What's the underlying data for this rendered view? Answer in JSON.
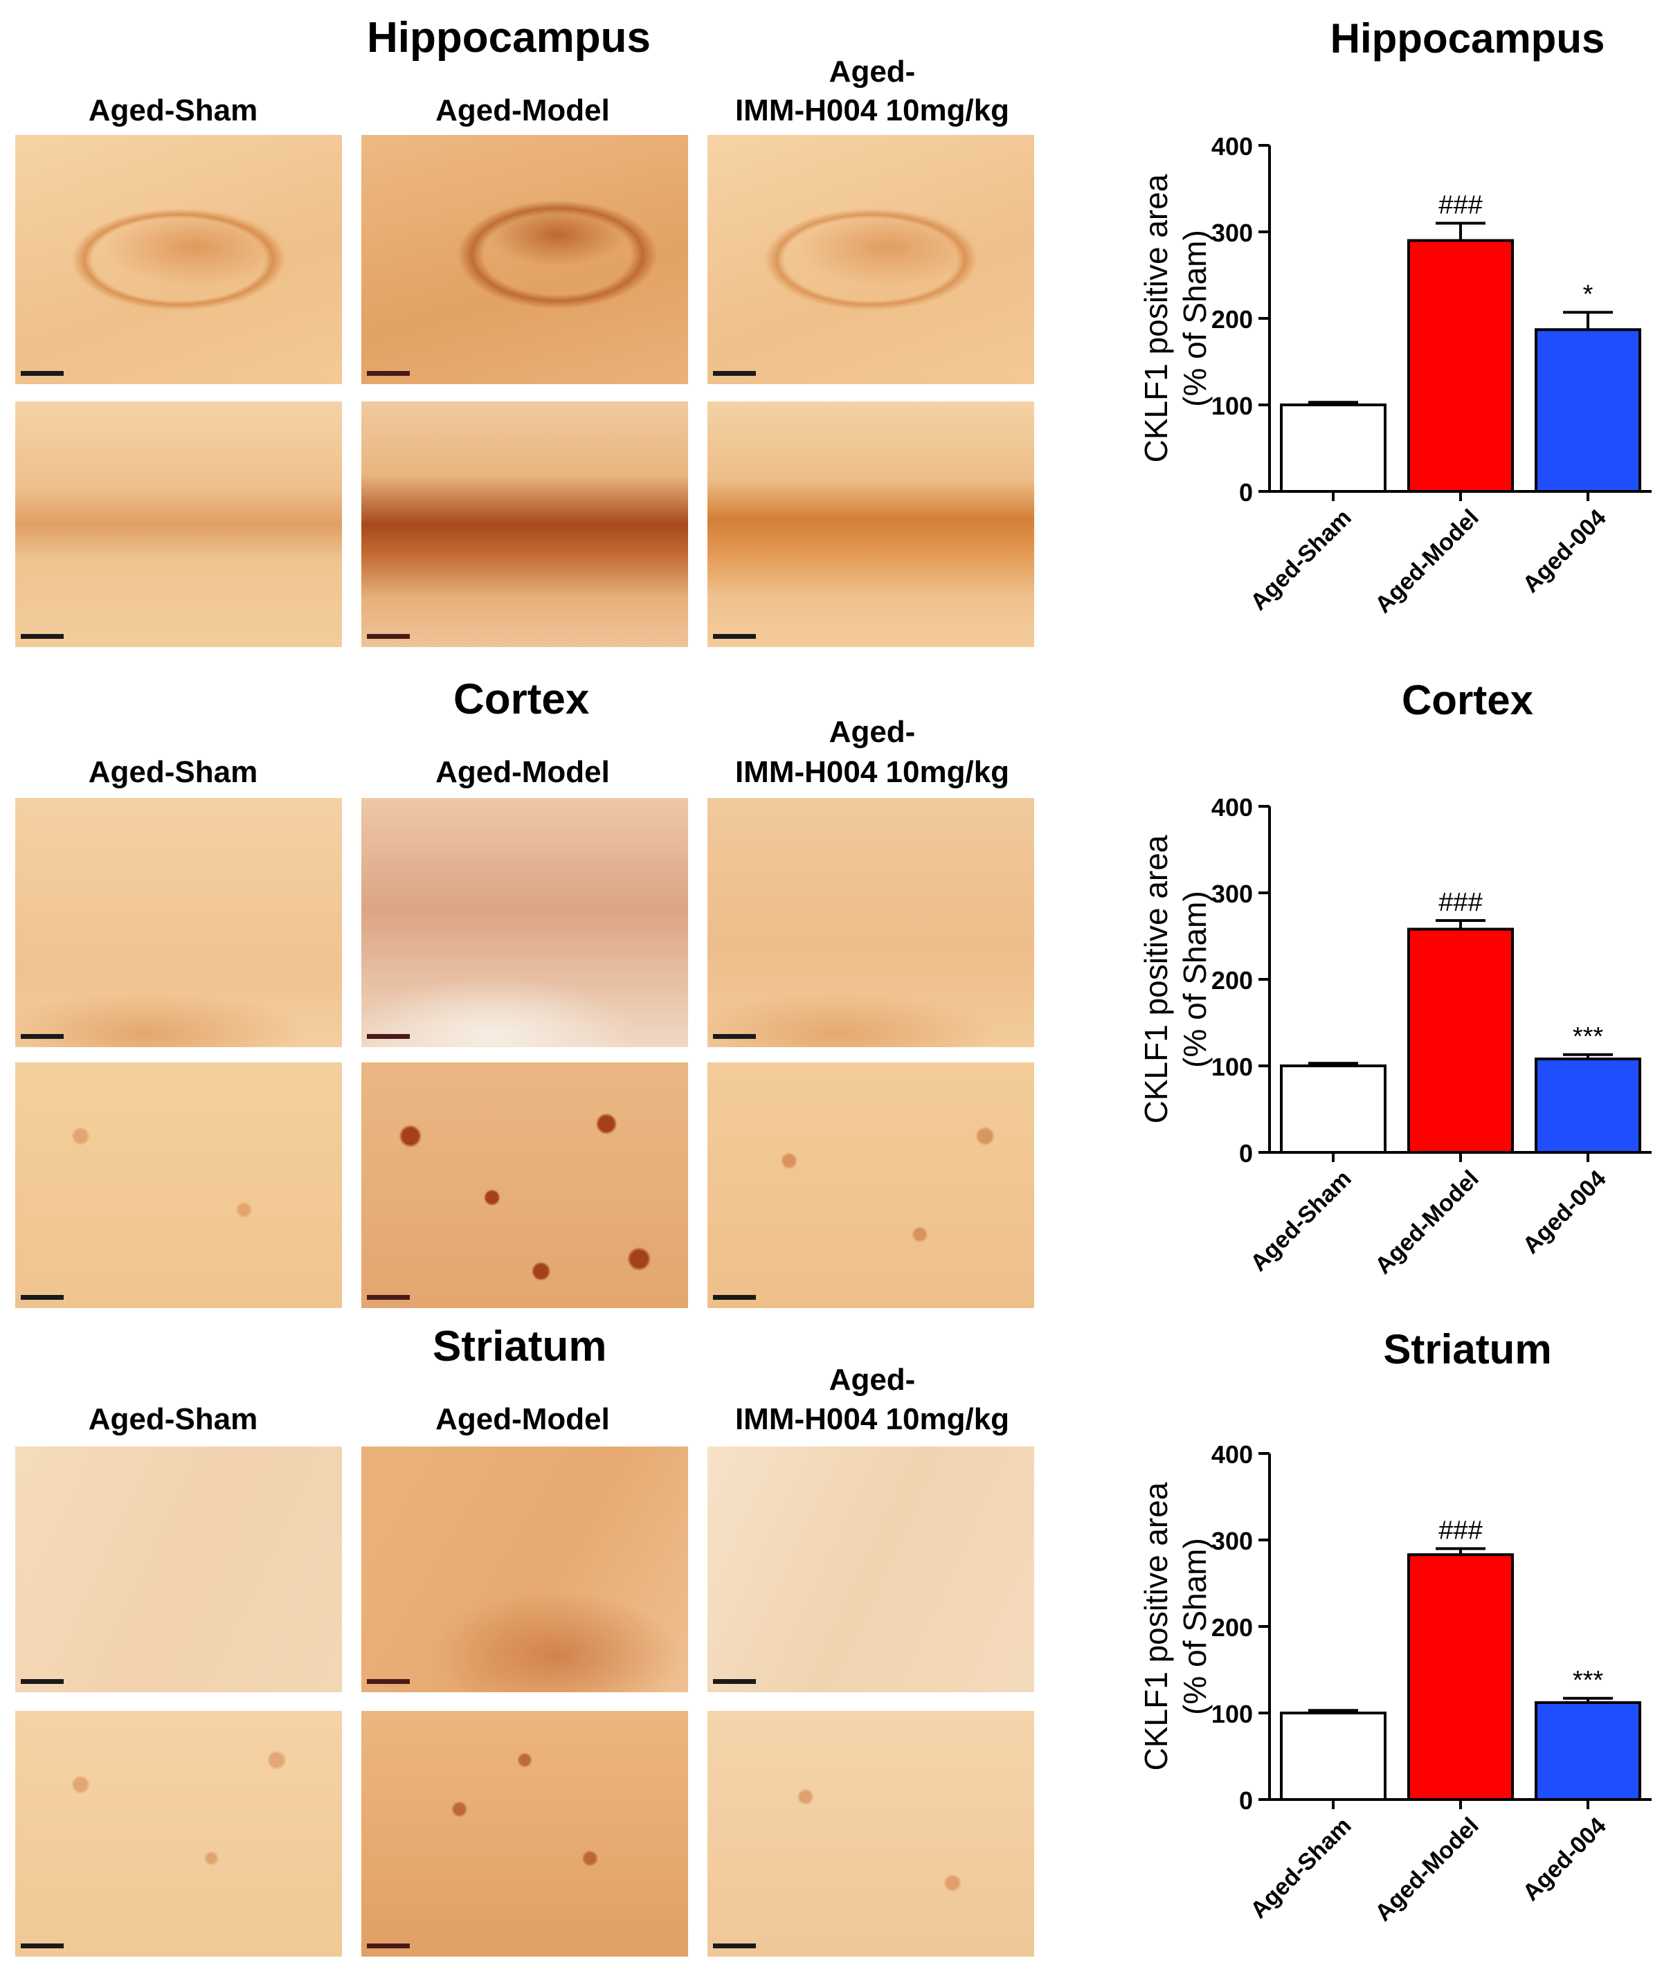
{
  "column_labels": {
    "sham": "Aged-Sham",
    "model": "Aged-Model",
    "treated_line1": "Aged-",
    "treated_line2": "IMM-H004 10mg/kg"
  },
  "colors": {
    "sham_bar": "#ffffff",
    "model_bar": "#ff0000",
    "treated_bar": "#1f4eff",
    "stain_light": "#f2c690",
    "stain_mid": "#e39a55",
    "stain_dark": "#b45218"
  },
  "chart_data": [
    {
      "type": "bar",
      "title": "Hippocampus",
      "ylabel_line1": "CKLF1 positive area",
      "ylabel_line2": "(% of Sham)",
      "categories": [
        "Aged-Sham",
        "Aged-Model",
        "Aged-004"
      ],
      "values": [
        100,
        290,
        187
      ],
      "errors": [
        3,
        20,
        20
      ],
      "annotations": [
        "",
        "###",
        "*"
      ],
      "bar_colors": [
        "#ffffff",
        "#ff0000",
        "#1f4eff"
      ],
      "ylim": [
        0,
        400
      ],
      "yticks": [
        0,
        100,
        200,
        300,
        400
      ]
    },
    {
      "type": "bar",
      "title": "Cortex",
      "ylabel_line1": "CKLF1 positive area",
      "ylabel_line2": "(% of Sham)",
      "categories": [
        "Aged-Sham",
        "Aged-Model",
        "Aged-004"
      ],
      "values": [
        100,
        258,
        108
      ],
      "errors": [
        3,
        10,
        5
      ],
      "annotations": [
        "",
        "###",
        "***"
      ],
      "bar_colors": [
        "#ffffff",
        "#ff0000",
        "#1f4eff"
      ],
      "ylim": [
        0,
        400
      ],
      "yticks": [
        0,
        100,
        200,
        300,
        400
      ]
    },
    {
      "type": "bar",
      "title": "Striatum",
      "ylabel_line1": "CKLF1 positive area",
      "ylabel_line2": "(% of Sham)",
      "categories": [
        "Aged-Sham",
        "Aged-Model",
        "Aged-004"
      ],
      "values": [
        100,
        283,
        112
      ],
      "errors": [
        3,
        7,
        5
      ],
      "annotations": [
        "",
        "###",
        "***"
      ],
      "bar_colors": [
        "#ffffff",
        "#ff0000",
        "#1f4eff"
      ],
      "ylim": [
        0,
        400
      ],
      "yticks": [
        0,
        100,
        200,
        300,
        400
      ]
    }
  ]
}
